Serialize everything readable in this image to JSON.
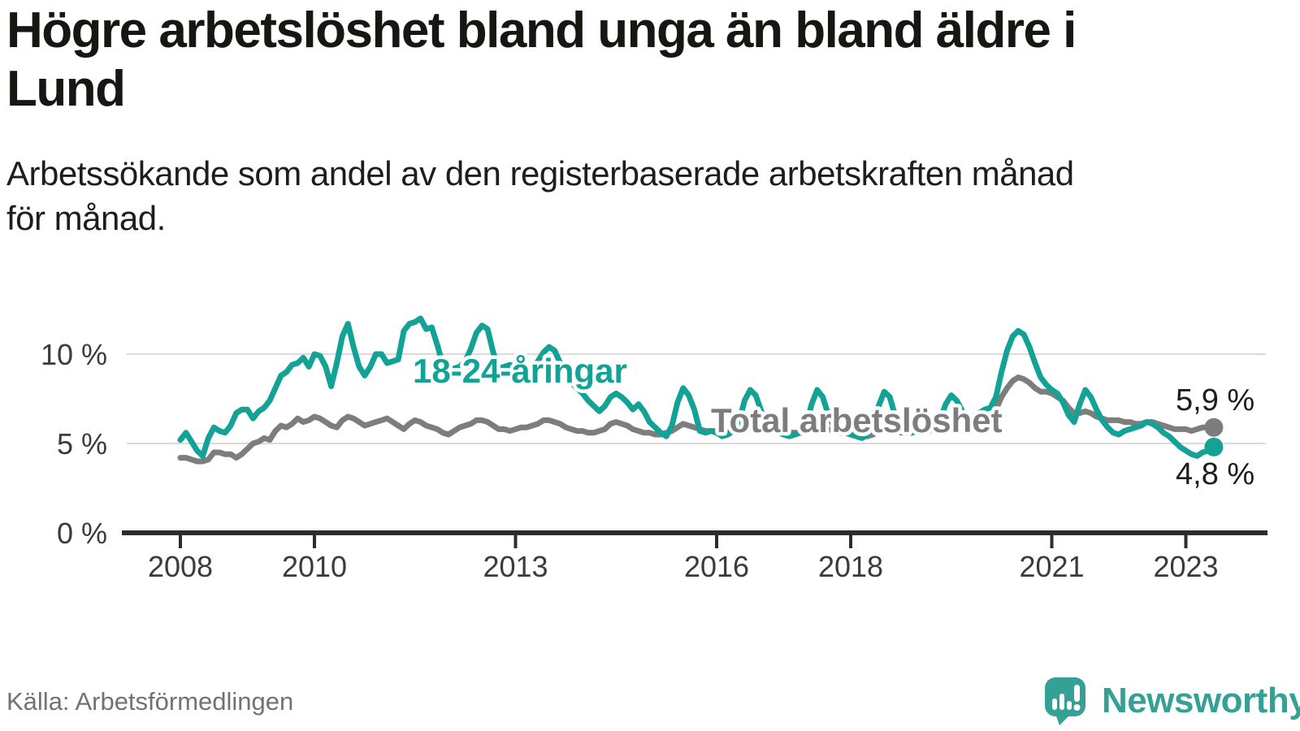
{
  "header": {
    "title_lines": [
      "Högre arbetslöshet bland unga än bland äldre i",
      "Lund"
    ],
    "subtitle_lines": [
      "Arbetssökande som andel av den registerbaserade arbetskraften månad",
      "för månad."
    ]
  },
  "footer": {
    "source": "Källa: Arbetsförmedlingen",
    "brand": "Newsworthy"
  },
  "colors": {
    "young_series": "#12a296",
    "total_series": "#7d7d7d",
    "axis": "#2d2d2d",
    "gridline": "#dadada",
    "brand_teal": "#35a095"
  },
  "chart_data": {
    "type": "line",
    "x_unit": "month",
    "x_start": "2008-01",
    "x_end": "2023-06",
    "x_tick_years": [
      2008,
      2010,
      2013,
      2016,
      2018,
      2021,
      2023
    ],
    "y_ticks": [
      {
        "value": 0,
        "label": "0 %"
      },
      {
        "value": 5,
        "label": "5 %"
      },
      {
        "value": 10,
        "label": "10 %"
      }
    ],
    "ylim": [
      0,
      12.5
    ],
    "grid": "horizontal",
    "legend_position": "inline-labels",
    "series": [
      {
        "name": "Total arbetslöshet",
        "color": "#7d7d7d",
        "end_label": "5,9 %",
        "end_value": 5.9,
        "values": [
          4.2,
          4.2,
          4.1,
          4.0,
          4.0,
          4.1,
          4.5,
          4.5,
          4.4,
          4.4,
          4.2,
          4.4,
          4.7,
          5.0,
          5.1,
          5.3,
          5.2,
          5.7,
          6.0,
          5.9,
          6.1,
          6.4,
          6.2,
          6.3,
          6.5,
          6.4,
          6.2,
          6.0,
          5.9,
          6.3,
          6.5,
          6.4,
          6.2,
          6.0,
          6.1,
          6.2,
          6.3,
          6.4,
          6.2,
          6.0,
          5.8,
          6.1,
          6.3,
          6.2,
          6.0,
          5.9,
          5.8,
          5.6,
          5.5,
          5.7,
          5.9,
          6.0,
          6.1,
          6.3,
          6.3,
          6.2,
          6.0,
          5.8,
          5.8,
          5.7,
          5.8,
          5.9,
          5.9,
          6.0,
          6.1,
          6.3,
          6.3,
          6.2,
          6.1,
          5.9,
          5.8,
          5.7,
          5.7,
          5.6,
          5.6,
          5.7,
          5.8,
          6.1,
          6.2,
          6.1,
          6.0,
          5.8,
          5.7,
          5.6,
          5.6,
          5.5,
          5.5,
          5.6,
          5.7,
          5.9,
          6.1,
          6.0,
          5.9,
          5.8,
          5.7,
          5.7,
          5.7,
          5.6,
          5.6,
          5.7,
          5.8,
          5.9,
          6.0,
          6.0,
          5.9,
          5.8,
          5.7,
          5.7,
          5.7,
          5.6,
          5.6,
          5.6,
          5.7,
          5.9,
          6.0,
          5.9,
          5.8,
          5.7,
          5.6,
          5.6,
          5.6,
          5.5,
          5.4,
          5.4,
          5.5,
          5.7,
          5.8,
          5.8,
          5.7,
          5.6,
          5.6,
          5.7,
          5.8,
          5.8,
          5.9,
          6.0,
          6.1,
          6.3,
          6.4,
          6.3,
          6.2,
          6.2,
          6.2,
          6.3,
          6.4,
          6.5,
          6.9,
          7.6,
          8.1,
          8.5,
          8.7,
          8.6,
          8.4,
          8.1,
          7.9,
          7.9,
          7.8,
          7.6,
          7.4,
          7.0,
          6.7,
          6.7,
          6.8,
          6.7,
          6.5,
          6.4,
          6.3,
          6.3,
          6.3,
          6.2,
          6.2,
          6.1,
          6.1,
          6.2,
          6.2,
          6.1,
          6.0,
          5.9,
          5.8,
          5.8,
          5.8,
          5.7,
          5.8,
          5.9,
          5.9,
          5.9
        ]
      },
      {
        "name": "18-24-åringar",
        "color": "#12a296",
        "end_label": "4,8 %",
        "end_value": 4.8,
        "values": [
          5.2,
          5.6,
          5.1,
          4.6,
          4.3,
          5.3,
          5.9,
          5.7,
          5.6,
          6.0,
          6.7,
          6.9,
          6.9,
          6.4,
          6.8,
          7.0,
          7.4,
          8.1,
          8.8,
          9.0,
          9.4,
          9.5,
          9.8,
          9.3,
          10.0,
          9.9,
          9.3,
          8.2,
          9.5,
          11.0,
          11.7,
          10.4,
          9.3,
          8.8,
          9.3,
          10.0,
          10.0,
          9.5,
          9.6,
          9.7,
          11.3,
          11.7,
          11.8,
          12.0,
          11.4,
          11.5,
          10.5,
          9.4,
          9.0,
          9.2,
          9.3,
          9.6,
          10.3,
          11.2,
          11.6,
          11.4,
          10.1,
          9.2,
          9.3,
          9.4,
          9.3,
          9.1,
          9.0,
          9.2,
          9.6,
          10.1,
          10.4,
          10.2,
          9.5,
          8.8,
          8.4,
          8.1,
          7.8,
          7.4,
          7.1,
          6.8,
          7.1,
          7.6,
          7.8,
          7.6,
          7.3,
          6.9,
          7.2,
          6.8,
          6.2,
          5.9,
          5.6,
          5.4,
          6.0,
          7.3,
          8.1,
          7.7,
          6.9,
          5.7,
          5.6,
          5.7,
          5.6,
          5.4,
          5.5,
          5.7,
          6.2,
          7.4,
          8.0,
          7.7,
          6.8,
          6.0,
          5.7,
          5.6,
          5.5,
          5.4,
          5.5,
          5.6,
          6.0,
          7.2,
          8.0,
          7.6,
          6.6,
          5.9,
          5.7,
          5.6,
          5.5,
          5.4,
          5.3,
          5.5,
          6.0,
          7.1,
          7.9,
          7.6,
          6.5,
          5.8,
          5.6,
          5.6,
          5.7,
          5.6,
          5.7,
          5.9,
          6.3,
          7.2,
          7.7,
          7.4,
          6.8,
          6.4,
          6.5,
          6.7,
          6.9,
          7.0,
          7.6,
          9.0,
          10.2,
          11.0,
          11.3,
          11.1,
          10.4,
          9.5,
          8.7,
          8.3,
          8.0,
          7.8,
          7.3,
          6.6,
          6.2,
          7.2,
          8.0,
          7.6,
          6.9,
          6.3,
          5.9,
          5.6,
          5.5,
          5.7,
          5.8,
          5.9,
          6.0,
          6.2,
          6.1,
          5.9,
          5.6,
          5.4,
          5.1,
          4.8,
          4.6,
          4.4,
          4.3,
          4.5,
          4.6,
          4.8
        ]
      }
    ]
  }
}
